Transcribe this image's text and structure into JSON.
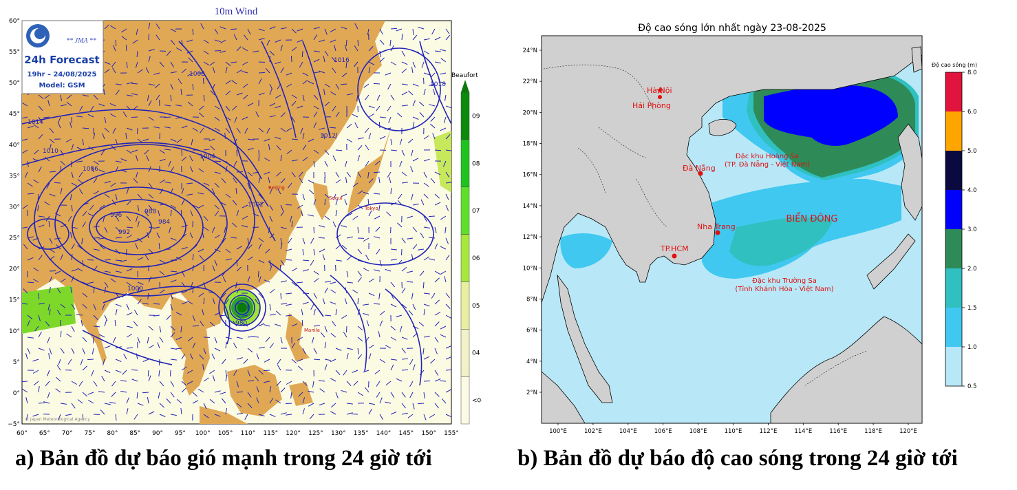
{
  "left_map": {
    "title": "10m Wind",
    "agency": "** JMA **",
    "forecast": "24h Forecast",
    "valid_time": "19hr – 24/08/2025",
    "model": "Model: GSM",
    "legend_title": "Beaufort",
    "legend_levels": [
      "09",
      "08",
      "07",
      "06",
      "05",
      "04",
      "<04"
    ],
    "legend_colors": [
      "#0b8a0b",
      "#1ec41e",
      "#5ee02a",
      "#a8e83c",
      "#e8f0a0",
      "#f2f2c8",
      "#fbfbe4"
    ],
    "lat_labels": [
      "60°",
      "55°",
      "50°",
      "45°",
      "40°",
      "35°",
      "30°",
      "25°",
      "20°",
      "15°",
      "10°",
      "5°",
      "0°",
      "−5°"
    ],
    "lon_labels": [
      "60°",
      "65°",
      "70°",
      "75°",
      "80°",
      "85°",
      "90°",
      "95°",
      "100°",
      "105°",
      "110°",
      "115°",
      "120°",
      "125°",
      "130°",
      "135°",
      "140°",
      "145°",
      "150°",
      "155°"
    ],
    "isobar_labels": [
      "1014",
      "1012",
      "1010",
      "1008",
      "1006",
      "1004",
      "1002",
      "1000",
      "996",
      "992",
      "988",
      "984",
      "980",
      "1016",
      "1018"
    ],
    "city_labels": [
      "Seoul",
      "Tokyo",
      "Manila",
      "Beijing"
    ],
    "footer": "© Japan Meteorological Agency"
  },
  "right_map": {
    "title": "Độ cao sóng lớn nhất ngày 23-08-2025",
    "lat_labels": [
      "24°N",
      "22°N",
      "20°N",
      "18°N",
      "16°N",
      "14°N",
      "12°N",
      "10°N",
      "8°N",
      "6°N",
      "4°N",
      "2°N"
    ],
    "lon_labels": [
      "100°E",
      "102°E",
      "104°E",
      "106°E",
      "108°E",
      "110°E",
      "112°E",
      "114°E",
      "116°E",
      "118°E",
      "120°E"
    ],
    "cities": [
      {
        "name": "Hà Nội"
      },
      {
        "name": "Hải Phòng"
      },
      {
        "name": "Đà Nẵng"
      },
      {
        "name": "Nha Trang"
      },
      {
        "name": "TP.HCM"
      }
    ],
    "hoang_sa_line1": "Đặc khu Hoàng Sa",
    "hoang_sa_line2": "(TP. Đà Nẵng - Việt Nam)",
    "sea_label": "BIỂN ĐÔNG",
    "truong_sa_line1": "Đặc khu Trường Sa",
    "truong_sa_line2": "(Tỉnh Khánh Hòa - Việt Nam)",
    "colorbar_title": "Độ cao sóng (m)",
    "colorbar_ticks": [
      "8.0",
      "6.0",
      "5.0",
      "4.0",
      "3.0",
      "2.0",
      "1.5",
      "1.0",
      "0.5"
    ],
    "colorbar_colors": [
      "#e0143c",
      "#ffa500",
      "#0a0a40",
      "#0000ff",
      "#2e8b57",
      "#30c0c0",
      "#40c8f0",
      "#b8e8f8"
    ]
  },
  "captions": {
    "a": "a) Bản đồ dự báo gió mạnh trong 24 giờ tới",
    "b": "b) Bản đồ dự báo độ cao sóng trong 24 giờ tới"
  }
}
